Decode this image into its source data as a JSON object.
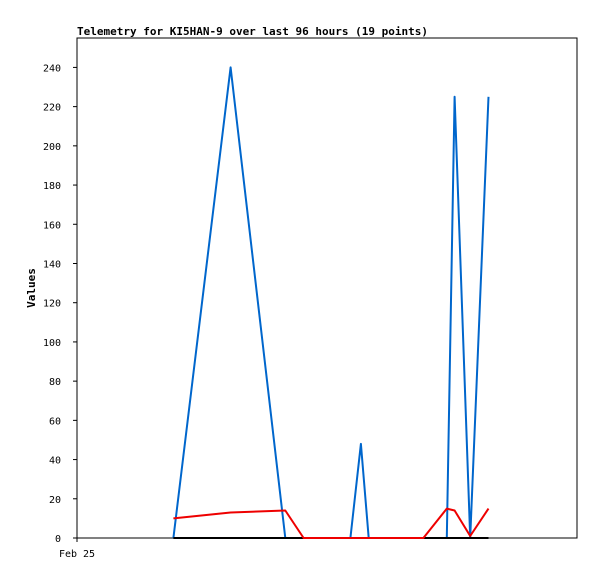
{
  "chart_data": {
    "type": "line",
    "title": "Telemetry for KI5HAN-9 over last 96 hours (19 points)",
    "ylabel": "Values",
    "xlabel": "",
    "ylim": [
      0,
      255
    ],
    "y_ticks": [
      0,
      20,
      40,
      60,
      80,
      100,
      120,
      140,
      160,
      180,
      200,
      220,
      240
    ],
    "xlim": [
      0,
      96
    ],
    "x_tick_labels": [
      {
        "x": 0,
        "label": "Feb 25"
      }
    ],
    "grid": false,
    "legend": "none",
    "series": [
      {
        "color": "#0066cc",
        "points": [
          [
            18.5,
            0
          ],
          [
            29.5,
            240
          ],
          [
            40,
            0
          ],
          [
            52.5,
            0
          ],
          [
            54.5,
            48
          ],
          [
            56,
            0
          ],
          [
            71,
            0
          ],
          [
            72.5,
            225
          ],
          [
            75.5,
            0
          ],
          [
            79,
            225
          ]
        ]
      },
      {
        "color": "#000000",
        "points": [
          [
            18.5,
            0
          ],
          [
            79,
            0
          ]
        ]
      },
      {
        "color": "#ee0000",
        "points": [
          [
            18.5,
            10
          ],
          [
            29.5,
            13
          ],
          [
            40,
            14
          ],
          [
            43.5,
            0
          ],
          [
            66.5,
            0
          ],
          [
            71,
            15
          ],
          [
            72.5,
            14
          ],
          [
            75.5,
            1
          ],
          [
            79,
            15
          ]
        ]
      }
    ]
  }
}
